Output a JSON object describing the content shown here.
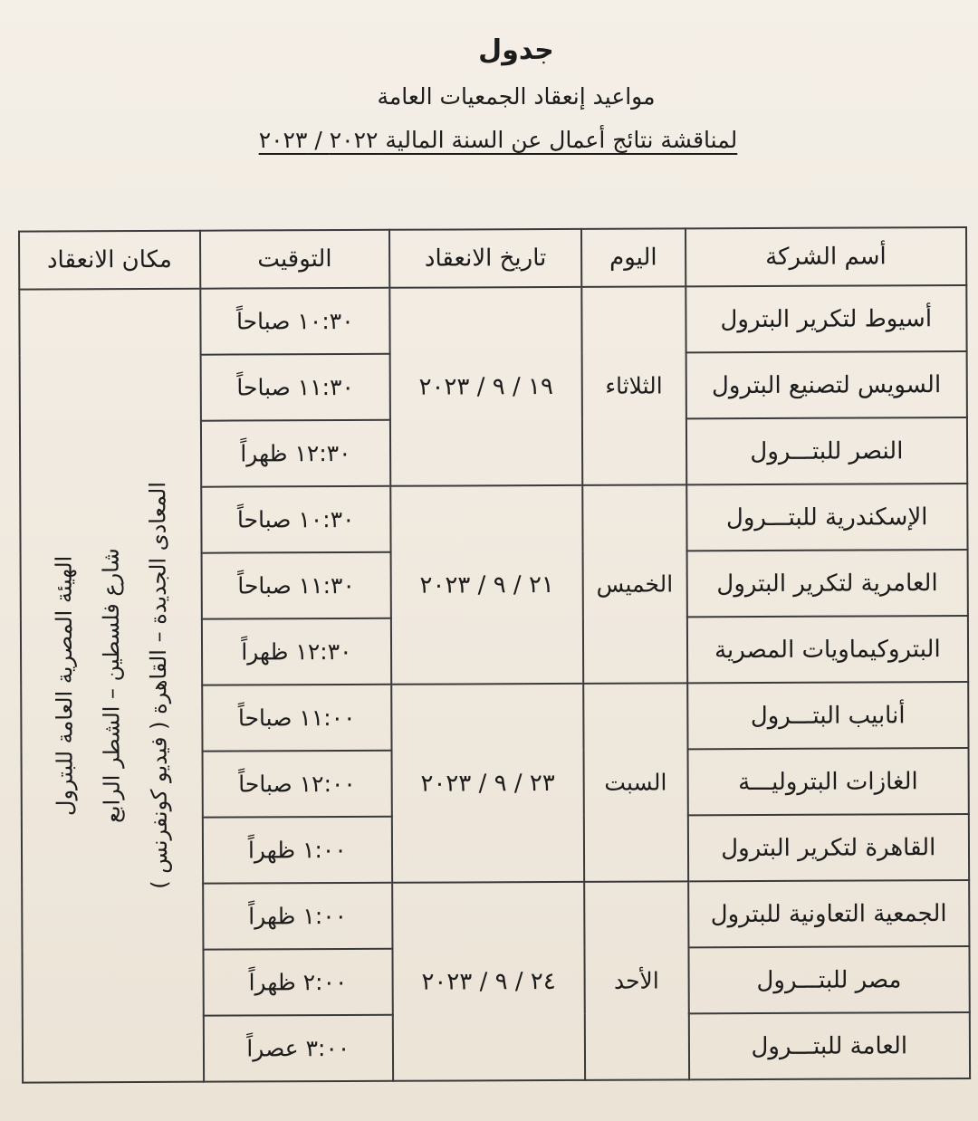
{
  "title": "جدول",
  "subtitle": "مواعيد إنعقاد الجمعيات العامة",
  "subtitle2": "لمناقشة نتائج أعمال عن السنة المالية ٢٠٢٢ / ٢٠٢٣",
  "headers": {
    "company": "أسم الشركة",
    "day": "اليوم",
    "date": "تاريخ الانعقاد",
    "time": "التوقيت",
    "location": "مكان الانعقاد"
  },
  "location": [
    "الهيئة المصرية العامة للبترول",
    "شارع فلسطين – الشطر الرابع",
    "المعادى الجديدة – القاهرة ( فيديو كونفرنس )"
  ],
  "groups": [
    {
      "day": "الثلاثاء",
      "date": "١٩ / ٩ / ٢٠٢٣",
      "rows": [
        {
          "company": "أسيوط لتكرير البترول",
          "time": "١٠:٣٠ صباحاً"
        },
        {
          "company": "السويس لتصنيع البترول",
          "time": "١١:٣٠ صباحاً"
        },
        {
          "company": "النصر للبتـــرول",
          "time": "١٢:٣٠ ظهراً"
        }
      ]
    },
    {
      "day": "الخميس",
      "date": "٢١ / ٩ / ٢٠٢٣",
      "rows": [
        {
          "company": "الإسكندرية للبتـــرول",
          "time": "١٠:٣٠ صباحاً"
        },
        {
          "company": "العامرية لتكرير البترول",
          "time": "١١:٣٠ صباحاً"
        },
        {
          "company": "البتروكيماويات المصرية",
          "time": "١٢:٣٠ ظهراً"
        }
      ]
    },
    {
      "day": "السبت",
      "date": "٢٣ / ٩ / ٢٠٢٣",
      "rows": [
        {
          "company": "أنابيب البتـــرول",
          "time": "١١:٠٠ صباحاً"
        },
        {
          "company": "الغازات البتروليـــة",
          "time": "١٢:٠٠ صباحاً"
        },
        {
          "company": "القاهرة لتكرير البترول",
          "time": "١:٠٠ ظهراً"
        }
      ]
    },
    {
      "day": "الأحد",
      "date": "٢٤ / ٩ / ٢٠٢٣",
      "rows": [
        {
          "company": "الجمعية التعاونية للبترول",
          "time": "١:٠٠ ظهراً"
        },
        {
          "company": "مصر للبتـــرول",
          "time": "٢:٠٠ ظهراً"
        },
        {
          "company": "العامة للبتـــرول",
          "time": "٣:٠٠ عصراً"
        }
      ]
    }
  ]
}
